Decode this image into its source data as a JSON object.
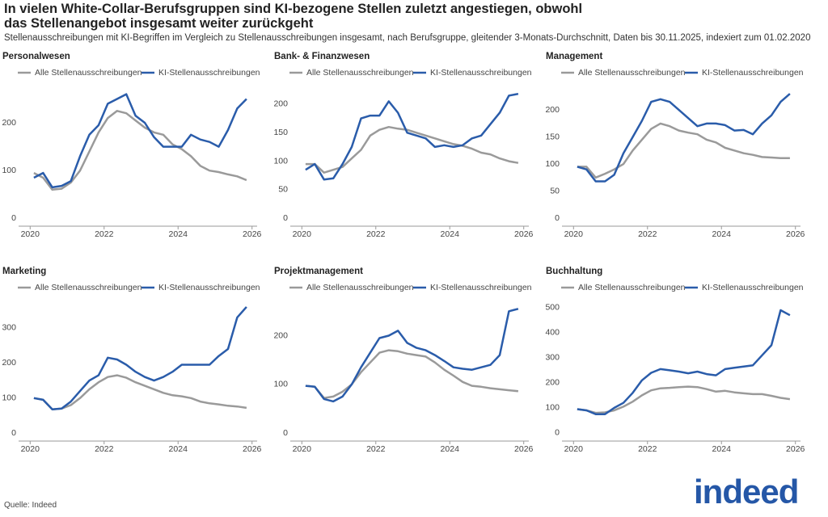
{
  "title": "In vielen White-Collar-Berufsgruppen sind KI-bezogene Stellen zuletzt angestiegen, obwohl das Stellenangebot insgesamt weiter zurückgeht",
  "subtitle": "Stellenausschreibungen mit KI-Begriffen im Vergleich zu Stellenausschreibungen insgesamt, nach Berufsgruppe, gleitender 3-Monats-Durchschnitt, Daten bis 30.11.2025, indexiert zum 01.02.2020",
  "source": "Quelle: Indeed",
  "logo": "indeed",
  "chart_data": [
    {
      "type": "line",
      "title": "Personalwesen",
      "x": [
        2020.1,
        2020.35,
        2020.6,
        2020.85,
        2021.1,
        2021.35,
        2021.6,
        2021.85,
        2022.1,
        2022.35,
        2022.6,
        2022.85,
        2023.1,
        2023.35,
        2023.6,
        2023.85,
        2024.1,
        2024.35,
        2024.6,
        2024.85,
        2025.1,
        2025.35,
        2025.6,
        2025.85
      ],
      "series": [
        {
          "name": "Alle Stellenausschreibungen",
          "color": "#9a9a9a",
          "values": [
            95,
            85,
            60,
            62,
            75,
            100,
            140,
            180,
            210,
            225,
            220,
            205,
            190,
            180,
            175,
            155,
            145,
            130,
            110,
            100,
            97,
            92,
            88,
            80
          ]
        },
        {
          "name": "KI-Stellenausschreibungen",
          "color": "#2a5caa",
          "values": [
            85,
            95,
            65,
            68,
            78,
            130,
            175,
            195,
            240,
            250,
            260,
            215,
            200,
            170,
            150,
            150,
            150,
            175,
            165,
            160,
            150,
            185,
            230,
            250
          ]
        }
      ],
      "xlim": [
        2019.95,
        2026.05
      ],
      "xticks": [
        2020,
        2022,
        2024,
        2026
      ],
      "ylim": [
        -13,
        288
      ],
      "yticks": [
        0,
        100,
        200
      ],
      "grid": false
    },
    {
      "type": "line",
      "title": "Bank- & Finanzwesen",
      "x": [
        2020.1,
        2020.35,
        2020.6,
        2020.85,
        2021.1,
        2021.35,
        2021.6,
        2021.85,
        2022.1,
        2022.35,
        2022.6,
        2022.85,
        2023.1,
        2023.35,
        2023.6,
        2023.85,
        2024.1,
        2024.35,
        2024.6,
        2024.85,
        2025.1,
        2025.35,
        2025.6,
        2025.85
      ],
      "series": [
        {
          "name": "Alle Stellenausschreibungen",
          "color": "#9a9a9a",
          "values": [
            95,
            95,
            80,
            85,
            90,
            105,
            120,
            145,
            155,
            160,
            157,
            155,
            150,
            145,
            140,
            135,
            130,
            127,
            122,
            115,
            112,
            105,
            100,
            97
          ]
        },
        {
          "name": "KI-Stellenausschreibungen",
          "color": "#2a5caa",
          "values": [
            85,
            95,
            68,
            70,
            95,
            125,
            175,
            180,
            180,
            205,
            185,
            150,
            145,
            140,
            125,
            128,
            125,
            128,
            140,
            145,
            165,
            185,
            215,
            218
          ]
        }
      ],
      "xlim": [
        2019.95,
        2026.05
      ],
      "xticks": [
        2020,
        2022,
        2024,
        2026
      ],
      "ylim": [
        -11,
        241
      ],
      "yticks": [
        0,
        50,
        100,
        150,
        200
      ],
      "grid": false
    },
    {
      "type": "line",
      "title": "Management",
      "x": [
        2020.1,
        2020.35,
        2020.6,
        2020.85,
        2021.1,
        2021.35,
        2021.6,
        2021.85,
        2022.1,
        2022.35,
        2022.6,
        2022.85,
        2023.1,
        2023.35,
        2023.6,
        2023.85,
        2024.1,
        2024.35,
        2024.6,
        2024.85,
        2025.1,
        2025.35,
        2025.6,
        2025.85
      ],
      "series": [
        {
          "name": "Alle Stellenausschreibungen",
          "color": "#9a9a9a",
          "values": [
            95,
            95,
            75,
            82,
            90,
            100,
            125,
            145,
            165,
            175,
            170,
            162,
            158,
            155,
            145,
            140,
            130,
            125,
            120,
            117,
            113,
            112,
            111,
            111
          ]
        },
        {
          "name": "KI-Stellenausschreibungen",
          "color": "#2a5caa",
          "values": [
            95,
            90,
            68,
            68,
            80,
            120,
            150,
            180,
            215,
            220,
            215,
            200,
            185,
            170,
            175,
            175,
            172,
            162,
            163,
            155,
            175,
            190,
            215,
            230
          ]
        }
      ],
      "xlim": [
        2019.95,
        2026.05
      ],
      "xticks": [
        2020,
        2022,
        2024,
        2026
      ],
      "ylim": [
        -12,
        254
      ],
      "yticks": [
        0,
        50,
        100,
        150,
        200
      ],
      "grid": false
    },
    {
      "type": "line",
      "title": "Marketing",
      "x": [
        2020.1,
        2020.35,
        2020.6,
        2020.85,
        2021.1,
        2021.35,
        2021.6,
        2021.85,
        2022.1,
        2022.35,
        2022.6,
        2022.85,
        2023.1,
        2023.35,
        2023.6,
        2023.85,
        2024.1,
        2024.35,
        2024.6,
        2024.85,
        2025.1,
        2025.35,
        2025.6,
        2025.85
      ],
      "series": [
        {
          "name": "Alle Stellenausschreibungen",
          "color": "#9a9a9a",
          "values": [
            100,
            95,
            68,
            70,
            80,
            100,
            125,
            145,
            160,
            165,
            158,
            145,
            135,
            125,
            115,
            108,
            105,
            100,
            90,
            85,
            82,
            78,
            76,
            72
          ]
        },
        {
          "name": "KI-Stellenausschreibungen",
          "color": "#2a5caa",
          "values": [
            100,
            95,
            68,
            70,
            90,
            120,
            150,
            165,
            215,
            210,
            195,
            175,
            160,
            150,
            160,
            175,
            195,
            195,
            195,
            195,
            220,
            240,
            330,
            360
          ]
        }
      ],
      "xlim": [
        2019.95,
        2026.05
      ],
      "xticks": [
        2020,
        2022,
        2024,
        2026
      ],
      "ylim": [
        -18,
        392
      ],
      "yticks": [
        0,
        100,
        200,
        300
      ],
      "grid": false
    },
    {
      "type": "line",
      "title": "Projektmanagement",
      "x": [
        2020.1,
        2020.35,
        2020.6,
        2020.85,
        2021.1,
        2021.35,
        2021.6,
        2021.85,
        2022.1,
        2022.35,
        2022.6,
        2022.85,
        2023.1,
        2023.35,
        2023.6,
        2023.85,
        2024.1,
        2024.35,
        2024.6,
        2024.85,
        2025.1,
        2025.35,
        2025.6,
        2025.85
      ],
      "series": [
        {
          "name": "Alle Stellenausschreibungen",
          "color": "#9a9a9a",
          "values": [
            97,
            95,
            72,
            75,
            85,
            100,
            125,
            145,
            165,
            170,
            168,
            163,
            160,
            157,
            145,
            130,
            118,
            105,
            97,
            95,
            92,
            90,
            88,
            86
          ]
        },
        {
          "name": "KI-Stellenausschreibungen",
          "color": "#2a5caa",
          "values": [
            97,
            95,
            70,
            65,
            75,
            100,
            135,
            165,
            195,
            200,
            210,
            185,
            175,
            170,
            160,
            148,
            135,
            132,
            130,
            135,
            140,
            160,
            250,
            255
          ]
        }
      ],
      "xlim": [
        2019.95,
        2026.05
      ],
      "xticks": [
        2020,
        2022,
        2024,
        2026
      ],
      "ylim": [
        -13,
        282
      ],
      "yticks": [
        0,
        100,
        200
      ],
      "grid": false
    },
    {
      "type": "line",
      "title": "Buchhaltung",
      "x": [
        2020.1,
        2020.35,
        2020.6,
        2020.85,
        2021.1,
        2021.35,
        2021.6,
        2021.85,
        2022.1,
        2022.35,
        2022.6,
        2022.85,
        2023.1,
        2023.35,
        2023.6,
        2023.85,
        2024.1,
        2024.35,
        2024.6,
        2024.85,
        2025.1,
        2025.35,
        2025.6,
        2025.85
      ],
      "series": [
        {
          "name": "Alle Stellenausschreibungen",
          "color": "#9a9a9a",
          "values": [
            95,
            90,
            80,
            82,
            90,
            105,
            125,
            150,
            170,
            178,
            180,
            183,
            185,
            183,
            175,
            165,
            168,
            162,
            158,
            155,
            155,
            148,
            140,
            135
          ]
        },
        {
          "name": "KI-Stellenausschreibungen",
          "color": "#2a5caa",
          "values": [
            95,
            90,
            75,
            75,
            100,
            120,
            160,
            210,
            240,
            255,
            250,
            245,
            238,
            245,
            235,
            230,
            255,
            260,
            265,
            270,
            310,
            350,
            490,
            470
          ]
        }
      ],
      "xlim": [
        2019.95,
        2026.05
      ],
      "xticks": [
        2020,
        2022,
        2024,
        2026
      ],
      "ylim": [
        -26,
        548
      ],
      "yticks": [
        0,
        100,
        200,
        300,
        400,
        500
      ],
      "grid": false
    }
  ]
}
